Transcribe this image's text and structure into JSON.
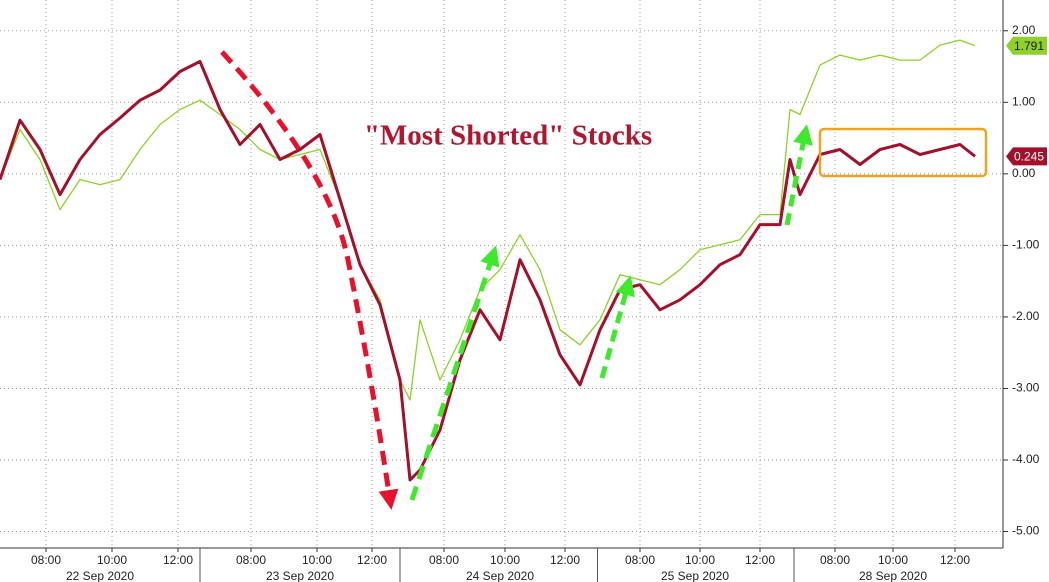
{
  "chart_data": {
    "type": "line",
    "title": "\"Most Shorted\" Stocks",
    "x": [
      0,
      0.1,
      0.2,
      0.3,
      0.4,
      0.5,
      0.6,
      0.7,
      0.8,
      0.9,
      1.0,
      1.1,
      1.2,
      1.3,
      1.4,
      1.5,
      1.6,
      1.7,
      1.8,
      1.9,
      2.0,
      2.05,
      2.1,
      2.2,
      2.3,
      2.4,
      2.5,
      2.6,
      2.7,
      2.8,
      2.9,
      3.0,
      3.1,
      3.2,
      3.3,
      3.4,
      3.5,
      3.6,
      3.7,
      3.8,
      3.9,
      3.95,
      4.0,
      4.1,
      4.2,
      4.3,
      4.4,
      4.5,
      4.6,
      4.7,
      4.8,
      4.875
    ],
    "series": [
      {
        "color": "#8ed12a",
        "values": [
          -0.08,
          0.62,
          0.2,
          -0.5,
          -0.08,
          -0.15,
          -0.08,
          0.34,
          0.69,
          0.9,
          1.03,
          0.83,
          0.62,
          0.34,
          0.2,
          0.27,
          0.34,
          -0.36,
          -1.27,
          -1.76,
          -2.88,
          -3.16,
          -2.04,
          -2.88,
          -2.32,
          -1.62,
          -1.34,
          -0.85,
          -1.34,
          -2.18,
          -2.39,
          -2.04,
          -1.41,
          -1.48,
          -1.55,
          -1.34,
          -1.06,
          -0.99,
          -0.92,
          -0.57,
          -0.57,
          0.9,
          0.83,
          1.52,
          1.66,
          1.59,
          1.66,
          1.59,
          1.59,
          1.8,
          1.87,
          1.791
        ]
      },
      {
        "color": "#a3102b",
        "values": [
          -0.08,
          0.75,
          0.34,
          -0.29,
          0.2,
          0.55,
          0.78,
          1.03,
          1.17,
          1.43,
          1.57,
          0.9,
          0.41,
          0.69,
          0.2,
          0.34,
          0.55,
          -0.36,
          -1.27,
          -1.83,
          -2.88,
          -4.28,
          -4.14,
          -3.58,
          -2.6,
          -1.9,
          -2.32,
          -1.2,
          -1.76,
          -2.53,
          -2.95,
          -2.18,
          -1.62,
          -1.55,
          -1.9,
          -1.76,
          -1.55,
          -1.27,
          -1.13,
          -0.71,
          -0.71,
          0.2,
          -0.29,
          0.27,
          0.34,
          0.13,
          0.34,
          0.41,
          0.27,
          0.34,
          0.41,
          0.245
        ]
      }
    ],
    "xlim": [
      0,
      5.015
    ],
    "xticks": [
      {
        "value": 0.23,
        "label": "08:00"
      },
      {
        "value": 0.56,
        "label": "10:00"
      },
      {
        "value": 0.89,
        "label": "12:00"
      },
      {
        "value": 1.255,
        "label": "08:00"
      },
      {
        "value": 1.585,
        "label": "10:00"
      },
      {
        "value": 1.86,
        "label": "12:00"
      },
      {
        "value": 2.22,
        "label": "08:00"
      },
      {
        "value": 2.525,
        "label": "10:00"
      },
      {
        "value": 2.825,
        "label": "12:00"
      },
      {
        "value": 3.2,
        "label": "08:00"
      },
      {
        "value": 3.5,
        "label": "10:00"
      },
      {
        "value": 3.8,
        "label": "12:00"
      },
      {
        "value": 4.175,
        "label": "08:00"
      },
      {
        "value": 4.465,
        "label": "10:00"
      },
      {
        "value": 4.775,
        "label": "12:00"
      }
    ],
    "xgroups": [
      {
        "value": 0.5,
        "label": "22 Sep 2020"
      },
      {
        "value": 1.5,
        "label": "23 Sep 2020"
      },
      {
        "value": 2.5,
        "label": "24 Sep 2020"
      },
      {
        "value": 3.475,
        "label": "25 Sep 2020"
      },
      {
        "value": 4.465,
        "label": "28 Sep 2020"
      }
    ],
    "ylim": [
      -5.23,
      2.43
    ],
    "yticks": [
      {
        "value": 2,
        "label": "2.00"
      },
      {
        "value": 1,
        "label": "1.00"
      },
      {
        "value": 0,
        "label": "0.00"
      },
      {
        "value": -1,
        "label": "-1.00"
      },
      {
        "value": -2,
        "label": "-2.00"
      },
      {
        "value": -3,
        "label": "-3.00"
      },
      {
        "value": -4,
        "label": "-4.00"
      },
      {
        "value": -5,
        "label": "-5.00"
      }
    ],
    "grid": true
  }
}
